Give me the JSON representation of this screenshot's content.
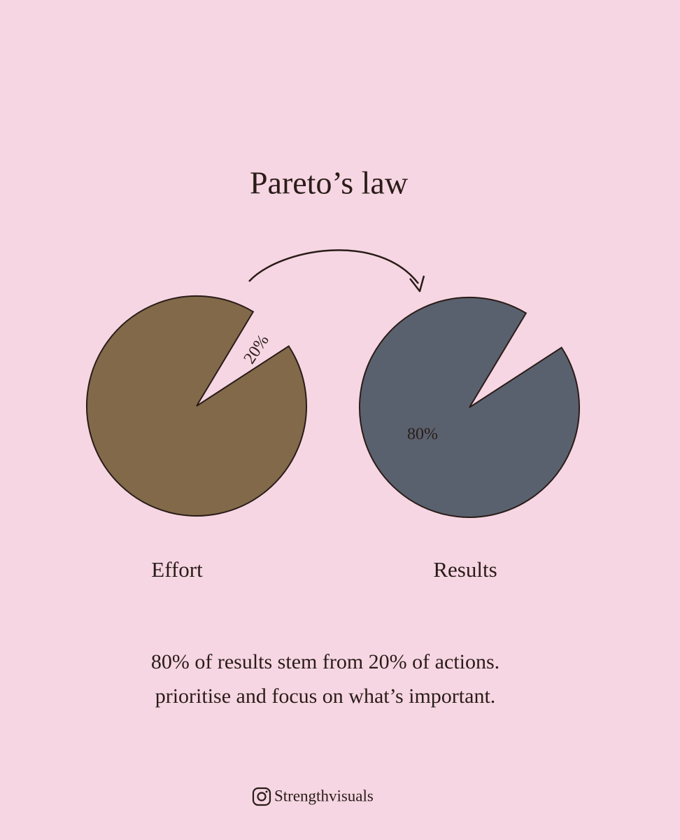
{
  "title": "Pareto’s law",
  "effort": {
    "label": "Effort",
    "slice_label": "20%"
  },
  "results": {
    "label": "Results",
    "slice_label": "80%"
  },
  "caption": {
    "line1": "80% of results stem from 20% of actions.",
    "line2": "prioritise and focus on what’s important."
  },
  "credit": "Strengthvisuals"
}
